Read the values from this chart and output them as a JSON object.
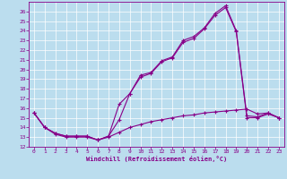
{
  "xlabel": "Windchill (Refroidissement éolien,°C)",
  "bg_color": "#bbddee",
  "line_color": "#880088",
  "xlim": [
    -0.5,
    23.5
  ],
  "ylim": [
    12,
    27
  ],
  "yticks": [
    12,
    13,
    14,
    15,
    16,
    17,
    18,
    19,
    20,
    21,
    22,
    23,
    24,
    25,
    26
  ],
  "xticks": [
    0,
    1,
    2,
    3,
    4,
    5,
    6,
    7,
    8,
    9,
    10,
    11,
    12,
    13,
    14,
    15,
    16,
    17,
    18,
    19,
    20,
    21,
    22,
    23
  ],
  "s1_x": [
    0,
    1,
    2,
    3,
    4,
    5,
    6,
    7,
    8,
    9,
    10,
    11,
    12,
    13,
    14,
    15,
    16,
    17,
    18,
    19,
    20,
    21,
    22,
    23
  ],
  "s1_y": [
    15.5,
    14.0,
    13.4,
    13.1,
    13.1,
    13.1,
    12.7,
    13.1,
    16.4,
    17.5,
    19.4,
    19.7,
    20.9,
    21.3,
    23.0,
    23.4,
    24.3,
    25.8,
    26.6,
    24.0,
    15.2,
    15.1,
    15.5,
    15.0
  ],
  "s2_x": [
    0,
    1,
    2,
    3,
    4,
    5,
    6,
    7,
    8,
    9,
    10,
    11,
    12,
    13,
    14,
    15,
    16,
    17,
    18,
    19,
    20,
    21,
    22,
    23
  ],
  "s2_y": [
    15.5,
    14.0,
    13.4,
    13.1,
    13.1,
    13.1,
    12.7,
    13.1,
    14.8,
    17.5,
    19.2,
    19.6,
    20.8,
    21.2,
    22.8,
    23.2,
    24.2,
    25.6,
    26.4,
    23.9,
    15.0,
    15.0,
    15.4,
    15.0
  ],
  "s3_x": [
    0,
    1,
    2,
    3,
    4,
    5,
    6,
    7,
    8,
    9,
    10,
    11,
    12,
    13,
    14,
    15,
    16,
    17,
    18,
    19,
    20,
    21,
    22,
    23
  ],
  "s3_y": [
    15.5,
    14.0,
    13.3,
    13.0,
    13.0,
    13.0,
    12.7,
    13.0,
    13.5,
    14.0,
    14.3,
    14.6,
    14.8,
    15.0,
    15.2,
    15.3,
    15.5,
    15.6,
    15.7,
    15.8,
    15.9,
    15.4,
    15.5,
    15.0
  ]
}
